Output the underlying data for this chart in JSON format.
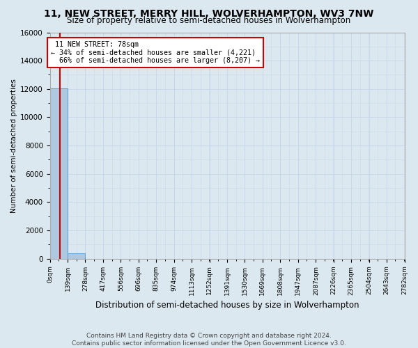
{
  "title": "11, NEW STREET, MERRY HILL, WOLVERHAMPTON, WV3 7NW",
  "subtitle": "Size of property relative to semi-detached houses in Wolverhampton",
  "xlabel": "Distribution of semi-detached houses by size in Wolverhampton",
  "ylabel": "Number of semi-detached properties",
  "property_size": 78,
  "property_label": "11 NEW STREET: 78sqm",
  "smaller_pct": 34,
  "smaller_count": 4221,
  "larger_pct": 66,
  "larger_count": 8207,
  "bin_edges": [
    0,
    139,
    278,
    417,
    556,
    696,
    835,
    974,
    1113,
    1252,
    1391,
    1530,
    1669,
    1808,
    1947,
    2087,
    2226,
    2365,
    2504,
    2643,
    2782
  ],
  "bin_labels": [
    "0sqm",
    "139sqm",
    "278sqm",
    "417sqm",
    "556sqm",
    "696sqm",
    "835sqm",
    "974sqm",
    "1113sqm",
    "1252sqm",
    "1391sqm",
    "1530sqm",
    "1669sqm",
    "1808sqm",
    "1947sqm",
    "2087sqm",
    "2226sqm",
    "2365sqm",
    "2504sqm",
    "2643sqm",
    "2782sqm"
  ],
  "bar_heights": [
    12028,
    400,
    0,
    0,
    0,
    0,
    0,
    0,
    0,
    0,
    0,
    0,
    0,
    0,
    0,
    0,
    0,
    0,
    0,
    0
  ],
  "bar_color": "#aec8e0",
  "bar_edge_color": "#5b9bd5",
  "vline_color": "#cc0000",
  "ylim": [
    0,
    16000
  ],
  "yticks": [
    0,
    2000,
    4000,
    6000,
    8000,
    10000,
    12000,
    14000,
    16000
  ],
  "annotation_box_color": "#ffffff",
  "annotation_box_edge": "#cc0000",
  "grid_color": "#c8d8e8",
  "bg_color": "#dce8f0",
  "title_fontsize": 10,
  "subtitle_fontsize": 8.5,
  "footer": "Contains HM Land Registry data © Crown copyright and database right 2024.\nContains public sector information licensed under the Open Government Licence v3.0."
}
